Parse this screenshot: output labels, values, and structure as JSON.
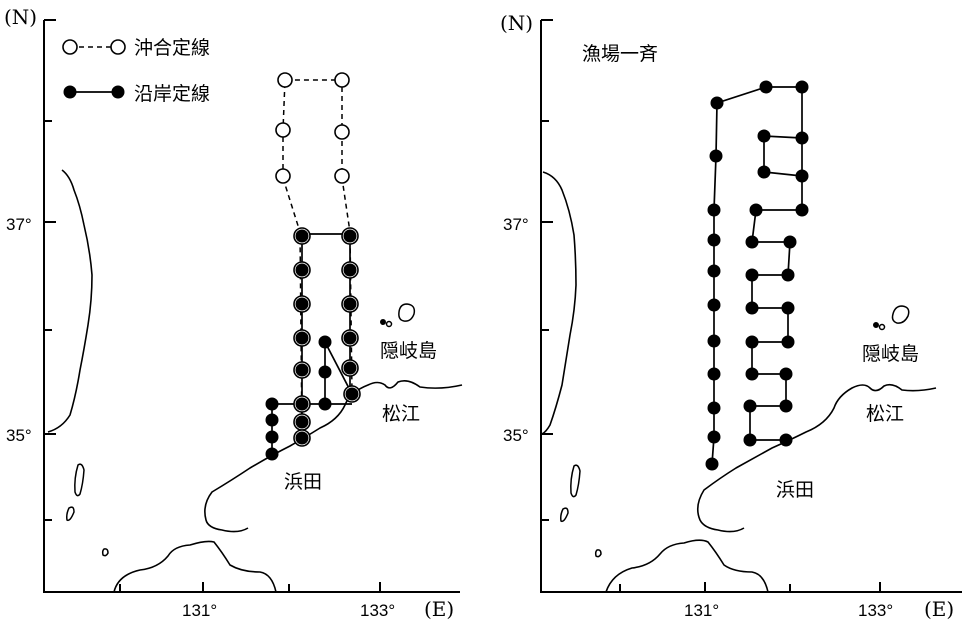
{
  "map_left": {
    "axis_n": "(N)",
    "axis_e": "(E)",
    "lat_labels": [
      "37°",
      "35°"
    ],
    "lon_labels": [
      "131°",
      "133°"
    ],
    "legend": {
      "offshore_label": "沖合定線",
      "coastal_label": "沿岸定線"
    },
    "places": {
      "oki": "隠岐島",
      "matsue": "松江",
      "hamada": "浜田"
    }
  },
  "map_right": {
    "axis_n": "(N)",
    "axis_e": "(E)",
    "lat_labels": [
      "37°",
      "35°"
    ],
    "lon_labels": [
      "131°",
      "133°"
    ],
    "title": "漁場一斉",
    "places": {
      "oki": "隠岐島",
      "matsue": "松江",
      "hamada": "浜田"
    }
  }
}
